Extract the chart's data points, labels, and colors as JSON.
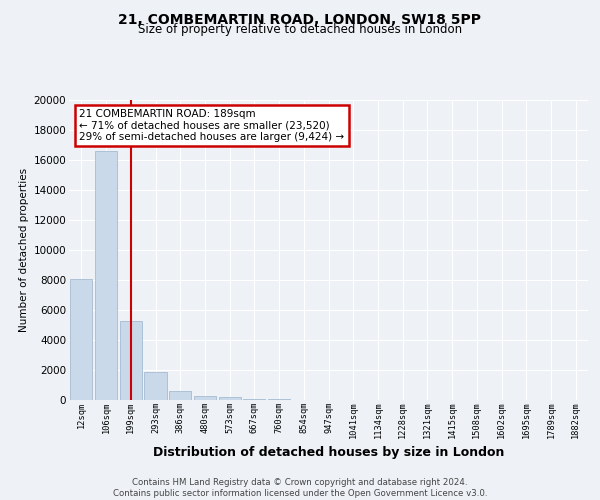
{
  "title": "21, COMBEMARTIN ROAD, LONDON, SW18 5PP",
  "subtitle": "Size of property relative to detached houses in London",
  "xlabel": "Distribution of detached houses by size in London",
  "ylabel": "Number of detached properties",
  "bar_color": "#c9d9ea",
  "bar_edge_color": "#9ab4cc",
  "vline_color": "#cc0000",
  "vline_x_index": 2,
  "annotation_line1": "21 COMBEMARTIN ROAD: 189sqm",
  "annotation_line2": "← 71% of detached houses are smaller (23,520)",
  "annotation_line3": "29% of semi-detached houses are larger (9,424) →",
  "annotation_box_color": "#cc0000",
  "categories": [
    "12sqm",
    "106sqm",
    "199sqm",
    "293sqm",
    "386sqm",
    "480sqm",
    "573sqm",
    "667sqm",
    "760sqm",
    "854sqm",
    "947sqm",
    "1041sqm",
    "1134sqm",
    "1228sqm",
    "1321sqm",
    "1415sqm",
    "1508sqm",
    "1602sqm",
    "1695sqm",
    "1789sqm",
    "1882sqm"
  ],
  "values": [
    8100,
    16600,
    5300,
    1850,
    600,
    300,
    200,
    100,
    50,
    30,
    0,
    0,
    0,
    0,
    0,
    0,
    0,
    0,
    0,
    0,
    0
  ],
  "ylim": [
    0,
    20000
  ],
  "yticks": [
    0,
    2000,
    4000,
    6000,
    8000,
    10000,
    12000,
    14000,
    16000,
    18000,
    20000
  ],
  "footer": "Contains HM Land Registry data © Crown copyright and database right 2024.\nContains public sector information licensed under the Open Government Licence v3.0.",
  "background_color": "#eef2f7",
  "plot_bg_color": "#eef2f7",
  "grid_color": "#ffffff"
}
